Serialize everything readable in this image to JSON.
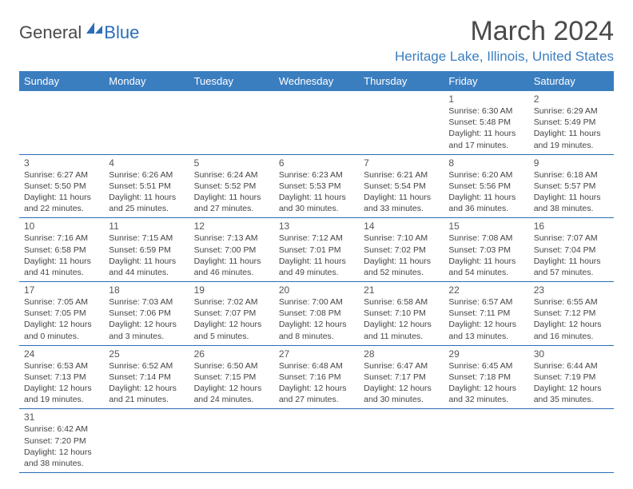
{
  "logo": {
    "general": "General",
    "blue": "Blue"
  },
  "title": "March 2024",
  "location": "Heritage Lake, Illinois, United States",
  "colors": {
    "header_bg": "#3b7ec0",
    "header_text": "#ffffff",
    "rule": "#2a6db8",
    "body_text": "#444444",
    "title_text": "#4a4a4a"
  },
  "weekdays": [
    "Sunday",
    "Monday",
    "Tuesday",
    "Wednesday",
    "Thursday",
    "Friday",
    "Saturday"
  ],
  "weeks": [
    [
      null,
      null,
      null,
      null,
      null,
      {
        "n": "1",
        "sr": "Sunrise: 6:30 AM",
        "ss": "Sunset: 5:48 PM",
        "d1": "Daylight: 11 hours",
        "d2": "and 17 minutes."
      },
      {
        "n": "2",
        "sr": "Sunrise: 6:29 AM",
        "ss": "Sunset: 5:49 PM",
        "d1": "Daylight: 11 hours",
        "d2": "and 19 minutes."
      }
    ],
    [
      {
        "n": "3",
        "sr": "Sunrise: 6:27 AM",
        "ss": "Sunset: 5:50 PM",
        "d1": "Daylight: 11 hours",
        "d2": "and 22 minutes."
      },
      {
        "n": "4",
        "sr": "Sunrise: 6:26 AM",
        "ss": "Sunset: 5:51 PM",
        "d1": "Daylight: 11 hours",
        "d2": "and 25 minutes."
      },
      {
        "n": "5",
        "sr": "Sunrise: 6:24 AM",
        "ss": "Sunset: 5:52 PM",
        "d1": "Daylight: 11 hours",
        "d2": "and 27 minutes."
      },
      {
        "n": "6",
        "sr": "Sunrise: 6:23 AM",
        "ss": "Sunset: 5:53 PM",
        "d1": "Daylight: 11 hours",
        "d2": "and 30 minutes."
      },
      {
        "n": "7",
        "sr": "Sunrise: 6:21 AM",
        "ss": "Sunset: 5:54 PM",
        "d1": "Daylight: 11 hours",
        "d2": "and 33 minutes."
      },
      {
        "n": "8",
        "sr": "Sunrise: 6:20 AM",
        "ss": "Sunset: 5:56 PM",
        "d1": "Daylight: 11 hours",
        "d2": "and 36 minutes."
      },
      {
        "n": "9",
        "sr": "Sunrise: 6:18 AM",
        "ss": "Sunset: 5:57 PM",
        "d1": "Daylight: 11 hours",
        "d2": "and 38 minutes."
      }
    ],
    [
      {
        "n": "10",
        "sr": "Sunrise: 7:16 AM",
        "ss": "Sunset: 6:58 PM",
        "d1": "Daylight: 11 hours",
        "d2": "and 41 minutes."
      },
      {
        "n": "11",
        "sr": "Sunrise: 7:15 AM",
        "ss": "Sunset: 6:59 PM",
        "d1": "Daylight: 11 hours",
        "d2": "and 44 minutes."
      },
      {
        "n": "12",
        "sr": "Sunrise: 7:13 AM",
        "ss": "Sunset: 7:00 PM",
        "d1": "Daylight: 11 hours",
        "d2": "and 46 minutes."
      },
      {
        "n": "13",
        "sr": "Sunrise: 7:12 AM",
        "ss": "Sunset: 7:01 PM",
        "d1": "Daylight: 11 hours",
        "d2": "and 49 minutes."
      },
      {
        "n": "14",
        "sr": "Sunrise: 7:10 AM",
        "ss": "Sunset: 7:02 PM",
        "d1": "Daylight: 11 hours",
        "d2": "and 52 minutes."
      },
      {
        "n": "15",
        "sr": "Sunrise: 7:08 AM",
        "ss": "Sunset: 7:03 PM",
        "d1": "Daylight: 11 hours",
        "d2": "and 54 minutes."
      },
      {
        "n": "16",
        "sr": "Sunrise: 7:07 AM",
        "ss": "Sunset: 7:04 PM",
        "d1": "Daylight: 11 hours",
        "d2": "and 57 minutes."
      }
    ],
    [
      {
        "n": "17",
        "sr": "Sunrise: 7:05 AM",
        "ss": "Sunset: 7:05 PM",
        "d1": "Daylight: 12 hours",
        "d2": "and 0 minutes."
      },
      {
        "n": "18",
        "sr": "Sunrise: 7:03 AM",
        "ss": "Sunset: 7:06 PM",
        "d1": "Daylight: 12 hours",
        "d2": "and 3 minutes."
      },
      {
        "n": "19",
        "sr": "Sunrise: 7:02 AM",
        "ss": "Sunset: 7:07 PM",
        "d1": "Daylight: 12 hours",
        "d2": "and 5 minutes."
      },
      {
        "n": "20",
        "sr": "Sunrise: 7:00 AM",
        "ss": "Sunset: 7:08 PM",
        "d1": "Daylight: 12 hours",
        "d2": "and 8 minutes."
      },
      {
        "n": "21",
        "sr": "Sunrise: 6:58 AM",
        "ss": "Sunset: 7:10 PM",
        "d1": "Daylight: 12 hours",
        "d2": "and 11 minutes."
      },
      {
        "n": "22",
        "sr": "Sunrise: 6:57 AM",
        "ss": "Sunset: 7:11 PM",
        "d1": "Daylight: 12 hours",
        "d2": "and 13 minutes."
      },
      {
        "n": "23",
        "sr": "Sunrise: 6:55 AM",
        "ss": "Sunset: 7:12 PM",
        "d1": "Daylight: 12 hours",
        "d2": "and 16 minutes."
      }
    ],
    [
      {
        "n": "24",
        "sr": "Sunrise: 6:53 AM",
        "ss": "Sunset: 7:13 PM",
        "d1": "Daylight: 12 hours",
        "d2": "and 19 minutes."
      },
      {
        "n": "25",
        "sr": "Sunrise: 6:52 AM",
        "ss": "Sunset: 7:14 PM",
        "d1": "Daylight: 12 hours",
        "d2": "and 21 minutes."
      },
      {
        "n": "26",
        "sr": "Sunrise: 6:50 AM",
        "ss": "Sunset: 7:15 PM",
        "d1": "Daylight: 12 hours",
        "d2": "and 24 minutes."
      },
      {
        "n": "27",
        "sr": "Sunrise: 6:48 AM",
        "ss": "Sunset: 7:16 PM",
        "d1": "Daylight: 12 hours",
        "d2": "and 27 minutes."
      },
      {
        "n": "28",
        "sr": "Sunrise: 6:47 AM",
        "ss": "Sunset: 7:17 PM",
        "d1": "Daylight: 12 hours",
        "d2": "and 30 minutes."
      },
      {
        "n": "29",
        "sr": "Sunrise: 6:45 AM",
        "ss": "Sunset: 7:18 PM",
        "d1": "Daylight: 12 hours",
        "d2": "and 32 minutes."
      },
      {
        "n": "30",
        "sr": "Sunrise: 6:44 AM",
        "ss": "Sunset: 7:19 PM",
        "d1": "Daylight: 12 hours",
        "d2": "and 35 minutes."
      }
    ],
    [
      {
        "n": "31",
        "sr": "Sunrise: 6:42 AM",
        "ss": "Sunset: 7:20 PM",
        "d1": "Daylight: 12 hours",
        "d2": "and 38 minutes."
      },
      null,
      null,
      null,
      null,
      null,
      null
    ]
  ]
}
